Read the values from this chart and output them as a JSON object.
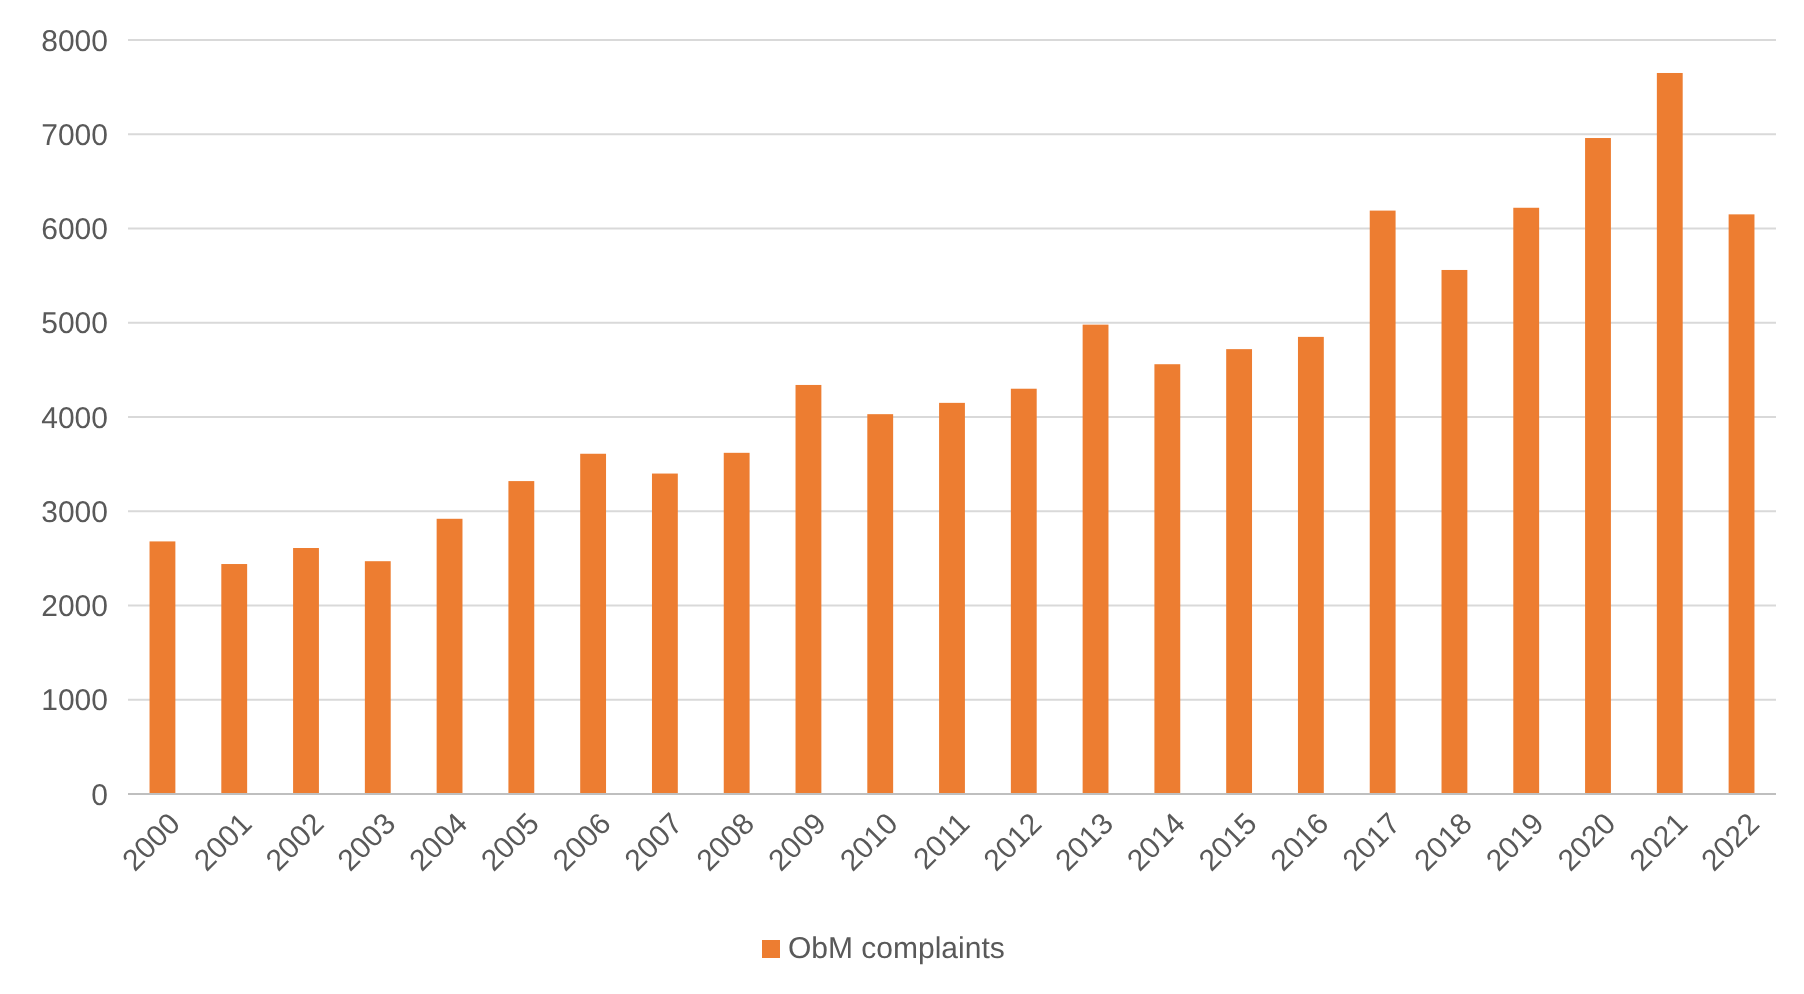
{
  "chart_data": {
    "type": "bar",
    "categories": [
      "2000",
      "2001",
      "2002",
      "2003",
      "2004",
      "2005",
      "2006",
      "2007",
      "2008",
      "2009",
      "2010",
      "2011",
      "2012",
      "2013",
      "2014",
      "2015",
      "2016",
      "2017",
      "2018",
      "2019",
      "2020",
      "2021",
      "2022"
    ],
    "series": [
      {
        "name": "ObM complaints",
        "color": "#ed7d31",
        "values": [
          2680,
          2440,
          2610,
          2470,
          2920,
          3320,
          3610,
          3400,
          3620,
          4340,
          4030,
          4150,
          4300,
          4980,
          4560,
          4720,
          4850,
          6190,
          5560,
          6220,
          6960,
          7650,
          6150
        ]
      }
    ],
    "ylim": [
      0,
      8000
    ],
    "yticks": [
      0,
      1000,
      2000,
      3000,
      4000,
      5000,
      6000,
      7000,
      8000
    ],
    "grid": "y",
    "legend": "bottom"
  }
}
